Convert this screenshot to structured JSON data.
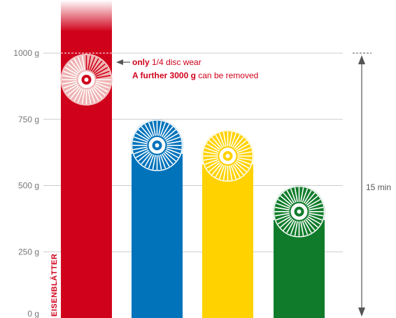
{
  "chart_data": {
    "type": "bar",
    "ylim": [
      0,
      1000
    ],
    "yticks": [
      {
        "value": 0,
        "label": "0 g"
      },
      {
        "value": 250,
        "label": "250 g"
      },
      {
        "value": 500,
        "label": "500 g"
      },
      {
        "value": 750,
        "label": "750 g"
      },
      {
        "value": 1000,
        "label": "1000 g"
      }
    ],
    "grid": true,
    "bars": [
      {
        "value": 1000,
        "color": "#d0021b",
        "label": "EISENBLÄTTER",
        "disc_wear": 0.25
      },
      {
        "value": 620,
        "color": "#0073bb"
      },
      {
        "value": 580,
        "color": "#ffd200"
      },
      {
        "value": 370,
        "color": "#107c2b"
      }
    ],
    "annotation": {
      "line1_bold": "only",
      "line1_rest": " 1/4 disc wear",
      "line2_bold": "A further 3000 g",
      "line2_rest": " can be removed"
    },
    "time_label": "15 min"
  }
}
